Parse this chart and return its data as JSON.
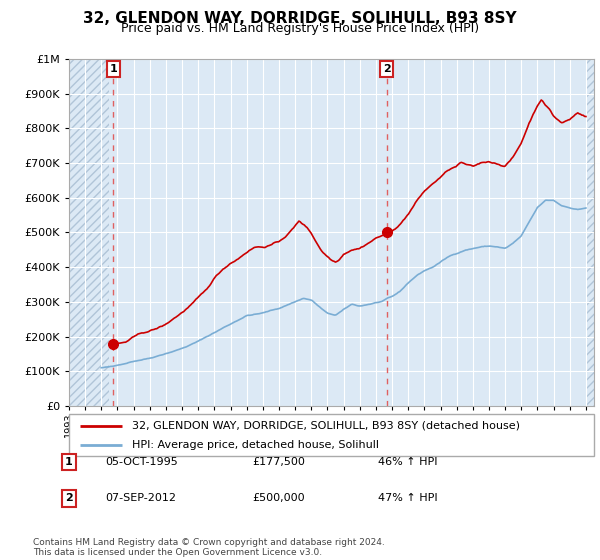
{
  "title": "32, GLENDON WAY, DORRIDGE, SOLIHULL, B93 8SY",
  "subtitle": "Price paid vs. HM Land Registry's House Price Index (HPI)",
  "legend_label_red": "32, GLENDON WAY, DORRIDGE, SOLIHULL, B93 8SY (detached house)",
  "legend_label_blue": "HPI: Average price, detached house, Solihull",
  "annotation1_date": "05-OCT-1995",
  "annotation1_price": "£177,500",
  "annotation1_hpi": "46% ↑ HPI",
  "annotation2_date": "07-SEP-2012",
  "annotation2_price": "£500,000",
  "annotation2_hpi": "47% ↑ HPI",
  "footer": "Contains HM Land Registry data © Crown copyright and database right 2024.\nThis data is licensed under the Open Government Licence v3.0.",
  "red_color": "#cc0000",
  "blue_color": "#7aadd4",
  "plot_bg_color": "#dce9f5",
  "hatch_color": "#b0c4d8",
  "grid_color": "#ffffff",
  "dashed_line_color": "#e06060",
  "sale1_x": 1995.75,
  "sale1_y": 177500,
  "sale2_x": 2012.67,
  "sale2_y": 500000,
  "ylim": [
    0,
    1000000
  ],
  "xlim": [
    1993.0,
    2025.5
  ]
}
